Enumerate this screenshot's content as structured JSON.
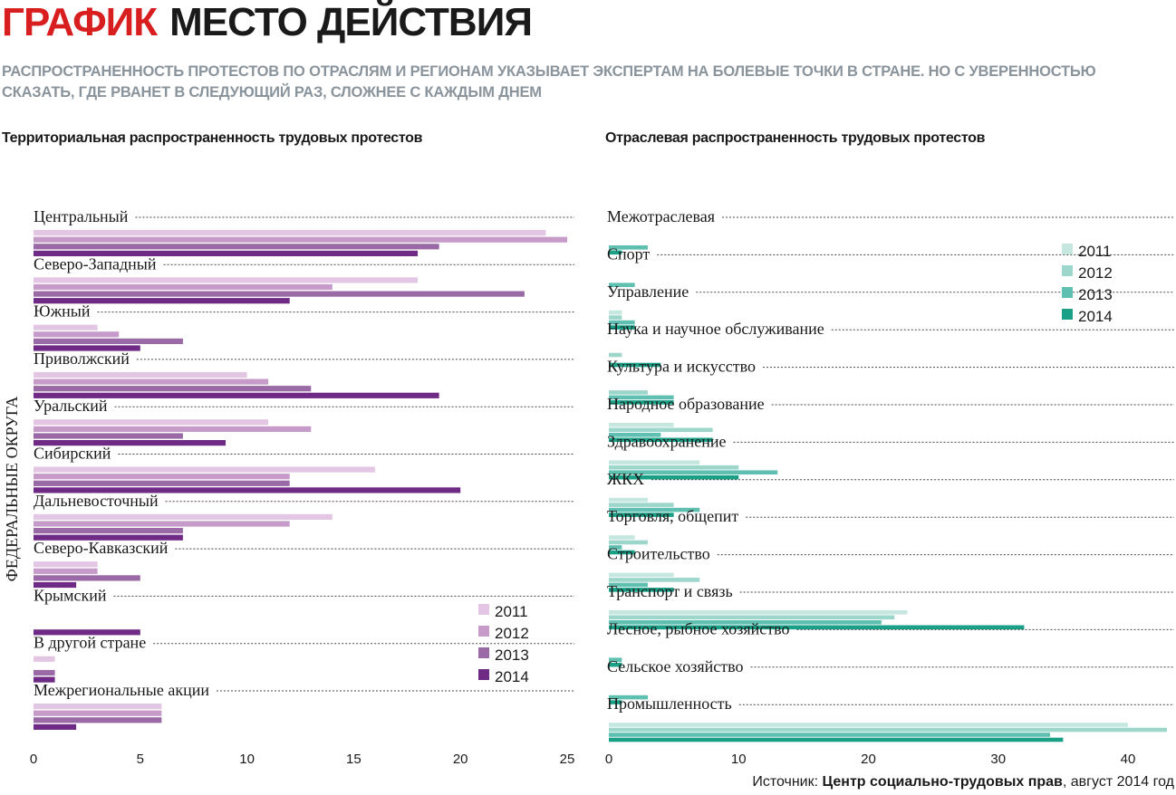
{
  "header": {
    "kicker": "ГРАФИК",
    "title": "МЕСТО ДЕЙСТВИЯ",
    "subtitle": "РАСПРОСТРАНЕННОСТЬ ПРОТЕСТОВ ПО ОТРАСЛЯМ И РЕГИОНАМ УКАЗЫВАЕТ ЭКСПЕРТАМ НА БОЛЕВЫЕ ТОЧКИ В СТРАНЕ. НО С УВЕРЕННОСТЬЮ СКАЗАТЬ, ГДЕ РВАНЕТ В СЛЕДУЮЩИЙ РАЗ, СЛОЖНЕЕ С КАЖДЫМ ДНЕМ"
  },
  "footer": {
    "source_prefix": "Источник: ",
    "source_name": "Центр социально-трудовых прав",
    "source_suffix": ", август 2014 год"
  },
  "chart_data": [
    {
      "type": "bar",
      "orientation": "horizontal",
      "title": "Территориальная распространенность трудовых протестов",
      "ylabel": "ФЕДЕРАЛЬНЫЕ ОКРУГА",
      "xlabel": "",
      "xlim": [
        0,
        25
      ],
      "xticks": [
        0,
        5,
        10,
        15,
        20,
        25
      ],
      "legend_position": "bottom-right",
      "categories": [
        "Центральный",
        "Северо-Западный",
        "Южный",
        "Приволжский",
        "Уральский",
        "Сибирский",
        "Дальневосточный",
        "Северо-Кавказский",
        "Крымский",
        "В другой стране",
        "Межрегиональные акции"
      ],
      "series": [
        {
          "name": "2011",
          "color": "#e3c6e3",
          "values": [
            24,
            18,
            3,
            10,
            11,
            16,
            14,
            3,
            0,
            1,
            6
          ]
        },
        {
          "name": "2012",
          "color": "#c79bc9",
          "values": [
            25,
            14,
            4,
            11,
            13,
            12,
            12,
            3,
            0,
            0,
            6
          ]
        },
        {
          "name": "2013",
          "color": "#9a6aa6",
          "values": [
            19,
            23,
            7,
            13,
            7,
            12,
            7,
            5,
            0,
            1,
            6
          ]
        },
        {
          "name": "2014",
          "color": "#6f2a86",
          "values": [
            18,
            12,
            5,
            19,
            9,
            20,
            7,
            2,
            5,
            1,
            2
          ]
        }
      ]
    },
    {
      "type": "bar",
      "orientation": "horizontal",
      "title": "Отраслевая распространенность трудовых протестов",
      "xlabel": "",
      "xlim": [
        0,
        43
      ],
      "xticks": [
        0,
        10,
        20,
        30,
        40
      ],
      "legend_position": "top-right",
      "categories": [
        "Межотраслевая",
        "Спорт",
        "Управление",
        "Наука и научное обслуживание",
        "Культура и искусство",
        "Народное образование",
        "Здравоохранение",
        "ЖКХ",
        "Торговля, общепит",
        "Строительство",
        "Транспорт и связь",
        "Лесное, рыбное хозяйство",
        "Сельское хозяйство",
        "Промышленность"
      ],
      "series": [
        {
          "name": "2011",
          "color": "#c6e6e0",
          "values": [
            0,
            0,
            1,
            0,
            0,
            5,
            7,
            3,
            2,
            5,
            23,
            0,
            0,
            40
          ]
        },
        {
          "name": "2012",
          "color": "#9dd6cb",
          "values": [
            0,
            0,
            1,
            1,
            3,
            8,
            10,
            5,
            3,
            7,
            22,
            0,
            0,
            43
          ]
        },
        {
          "name": "2013",
          "color": "#5fbfb0",
          "values": [
            3,
            2,
            2,
            0,
            5,
            4,
            13,
            7,
            1,
            3,
            21,
            1,
            3,
            34
          ]
        },
        {
          "name": "2014",
          "color": "#1aa087",
          "values": [
            1,
            0,
            2,
            4,
            5,
            8,
            10,
            5,
            2,
            5,
            32,
            1,
            1,
            35
          ]
        }
      ]
    }
  ]
}
